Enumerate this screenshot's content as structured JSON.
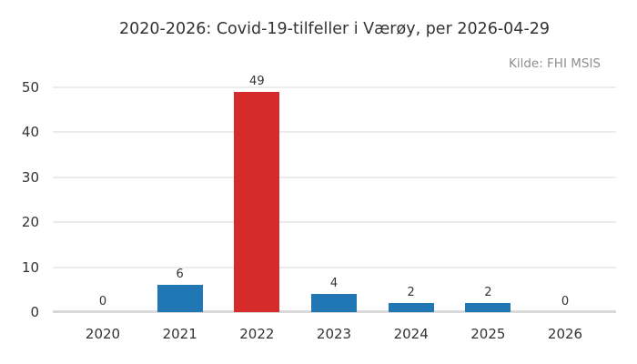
{
  "chart_data": {
    "type": "bar",
    "title": "2020-2026: Covid-19-tilfeller i Værøy, per 2026-04-29",
    "source": "Kilde: FHI MSIS",
    "categories": [
      "2020",
      "2021",
      "2022",
      "2023",
      "2024",
      "2025",
      "2026"
    ],
    "values": [
      0,
      6,
      49,
      4,
      2,
      2,
      0
    ],
    "bar_colors": [
      "#2077b4",
      "#2077b4",
      "#d62b2b",
      "#2077b4",
      "#2077b4",
      "#2077b4",
      "#2077b4"
    ],
    "yticks": [
      0,
      10,
      20,
      30,
      40,
      50
    ],
    "ylim": [
      0,
      52
    ],
    "xlabel": "",
    "ylabel": "",
    "grid": true,
    "value_labels_shown": true,
    "colors": {
      "default_bar": "#2077b4",
      "highlight_bar": "#d62b2b",
      "gridline": "#ececec",
      "axis_line": "#d9d9d9",
      "text": "#333333",
      "source_text": "#8e8e8e",
      "background": "#ffffff"
    }
  }
}
